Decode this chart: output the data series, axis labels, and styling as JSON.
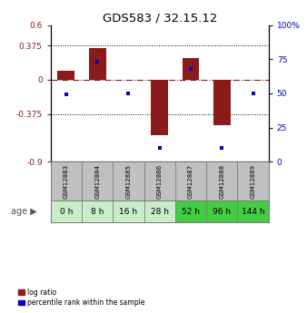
{
  "title": "GDS583 / 32.15.12",
  "samples": [
    "GSM12883",
    "GSM12884",
    "GSM12885",
    "GSM12886",
    "GSM12887",
    "GSM12888",
    "GSM12889"
  ],
  "ages": [
    "0 h",
    "8 h",
    "16 h",
    "28 h",
    "52 h",
    "96 h",
    "144 h"
  ],
  "log_ratios": [
    0.1,
    0.345,
    0.0,
    -0.61,
    0.24,
    -0.5,
    0.0
  ],
  "percentile_ranks": [
    49,
    73,
    50,
    10,
    68,
    10,
    50
  ],
  "ylim_left": [
    -0.9,
    0.6
  ],
  "ylim_right": [
    0,
    100
  ],
  "yticks_left": [
    -0.9,
    -0.375,
    0,
    0.375,
    0.6
  ],
  "ytick_labels_left": [
    "-0.9",
    "-0.375",
    "0",
    "0.375",
    "0.6"
  ],
  "yticks_right_vals": [
    0,
    25,
    50,
    75,
    100
  ],
  "ytick_labels_right": [
    "0",
    "25",
    "50",
    "75",
    "100%"
  ],
  "hlines": [
    0.375,
    -0.375
  ],
  "bar_color_red": "#8B1A1A",
  "bar_color_blue": "#0000CC",
  "background_color": "#ffffff",
  "age_row_colors": [
    "#c8eec8",
    "#c8eec8",
    "#c8eec8",
    "#c8eec8",
    "#44cc44",
    "#44cc44",
    "#44cc44"
  ],
  "sample_row_color": "#C0C0C0",
  "zero_line_color": "#8B1A1A",
  "bar_width": 0.55
}
